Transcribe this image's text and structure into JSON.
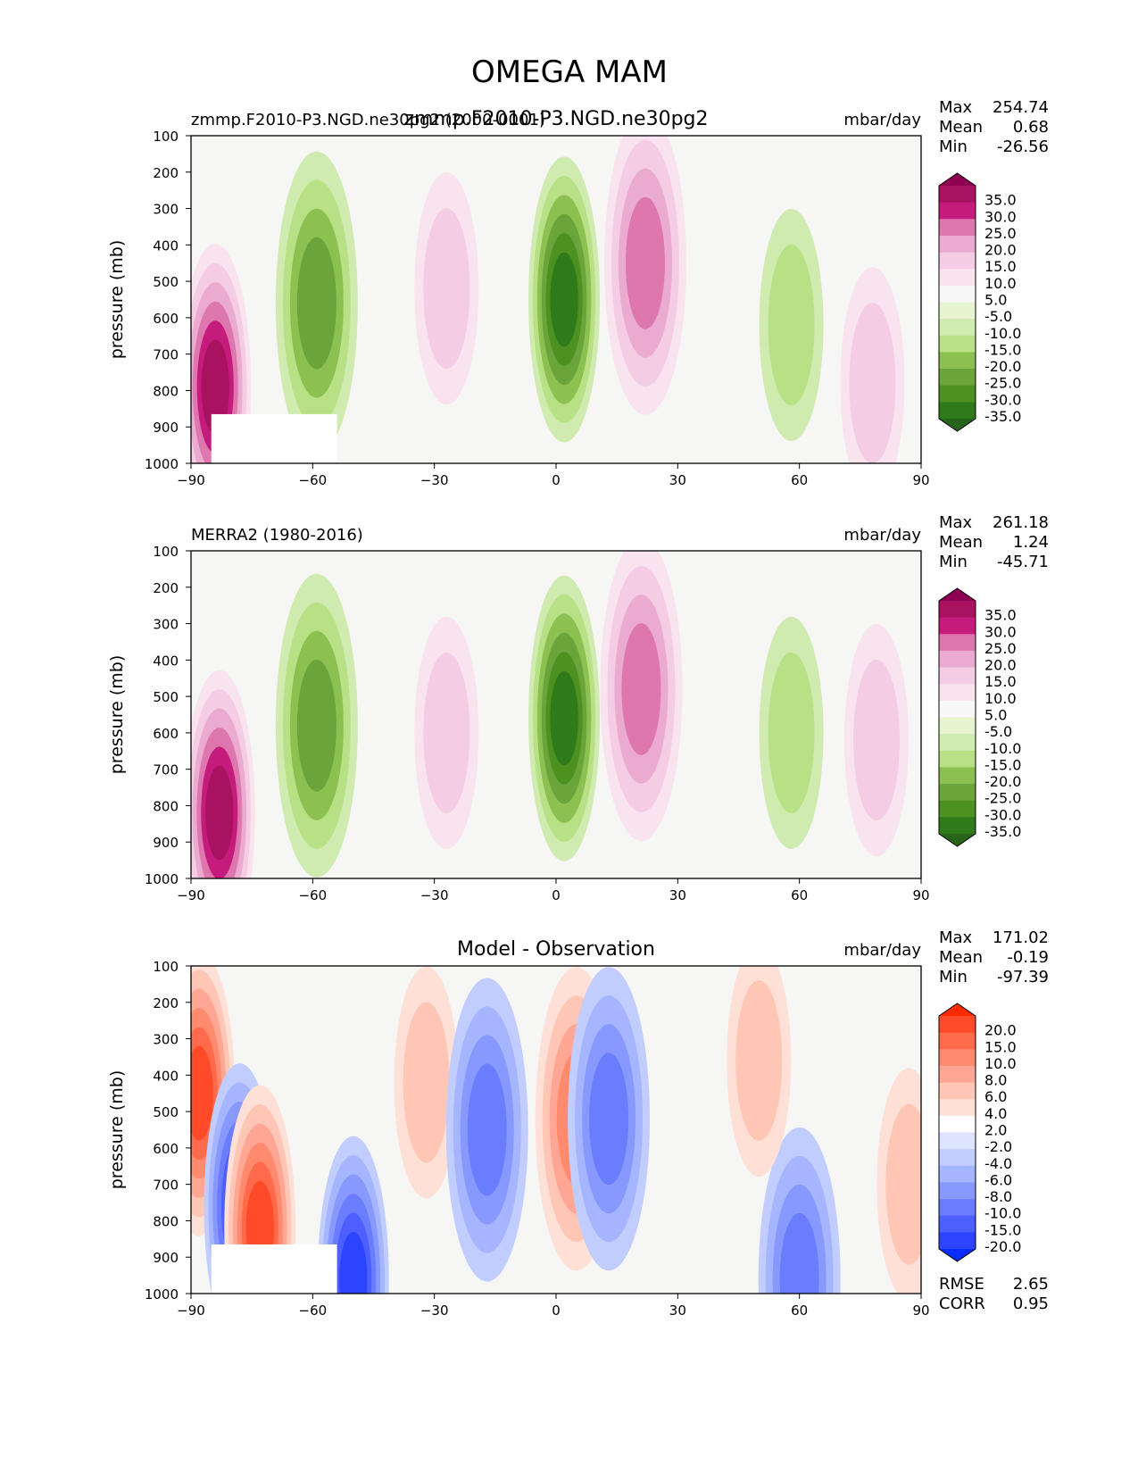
{
  "figure": {
    "title": "OMEGA MAM"
  },
  "chart_data": [
    {
      "type": "heatmap",
      "title": "zmmp.F2010-P3.NGD.ne30pg2",
      "left_label": "zmmp.F2010-P3.NGD.ne30pg2 (2000-0001)",
      "units": "mbar/day",
      "xlabel": "",
      "ylabel": "pressure (mb)",
      "x_ticks": [
        "−90",
        "−60",
        "−30",
        "0",
        "30",
        "60",
        "90"
      ],
      "y_ticks": [
        "100",
        "200",
        "300",
        "400",
        "500",
        "600",
        "700",
        "800",
        "900",
        "1000"
      ],
      "xlim": [
        -90,
        90
      ],
      "ylim": [
        1000,
        100
      ],
      "stats": [
        {
          "label": "Max",
          "value": "254.74"
        },
        {
          "label": "Mean",
          "value": "0.68"
        },
        {
          "label": "Min",
          "value": "-26.56"
        }
      ],
      "colorbar": {
        "levels": [
          "35.0",
          "30.0",
          "25.0",
          "20.0",
          "15.0",
          "10.0",
          "5.0",
          "-5.0",
          "-10.0",
          "-15.0",
          "-20.0",
          "-25.0",
          "-30.0",
          "-35.0"
        ],
        "colors": [
          "#8e0152",
          "#a8125f",
          "#c51b7d",
          "#de77ae",
          "#ebaad0",
          "#f4cde4",
          "#f9e3ef",
          "#f7f7f7",
          "#e6f5d0",
          "#d0ebb0",
          "#b8e186",
          "#8cc152",
          "#6aa43a",
          "#4d9221",
          "#2f7a1a",
          "#276419"
        ]
      },
      "features": [
        {
          "name": "polar-descent",
          "lon": -84,
          "p": 790,
          "sign": "positive",
          "strength": "strong"
        },
        {
          "name": "southern-storm-track-ascent",
          "lon": -59,
          "p": 560,
          "sign": "negative",
          "strength": "moderate"
        },
        {
          "name": "southern-subtropical-descent",
          "lon": -27,
          "p": 520,
          "sign": "positive",
          "strength": "weak"
        },
        {
          "name": "itcz-ascent",
          "lon": 2,
          "p": 550,
          "sign": "negative",
          "strength": "strong"
        },
        {
          "name": "northern-subtropical-descent",
          "lon": 22,
          "p": 450,
          "sign": "positive",
          "strength": "moderate"
        },
        {
          "name": "northern-midlatitude-ascent",
          "lon": 58,
          "p": 620,
          "sign": "negative",
          "strength": "weak"
        },
        {
          "name": "arctic-descent",
          "lon": 78,
          "p": 780,
          "sign": "positive",
          "strength": "weak"
        }
      ]
    },
    {
      "type": "heatmap",
      "title": "",
      "left_label": "MERRA2 (1980-2016)",
      "units": "mbar/day",
      "xlabel": "",
      "ylabel": "pressure (mb)",
      "x_ticks": [
        "−90",
        "−60",
        "−30",
        "0",
        "30",
        "60",
        "90"
      ],
      "y_ticks": [
        "100",
        "200",
        "300",
        "400",
        "500",
        "600",
        "700",
        "800",
        "900",
        "1000"
      ],
      "xlim": [
        -90,
        90
      ],
      "ylim": [
        1000,
        100
      ],
      "stats": [
        {
          "label": "Max",
          "value": "261.18"
        },
        {
          "label": "Mean",
          "value": "1.24"
        },
        {
          "label": "Min",
          "value": "-45.71"
        }
      ],
      "colorbar": {
        "levels": [
          "35.0",
          "30.0",
          "25.0",
          "20.0",
          "15.0",
          "10.0",
          "5.0",
          "-5.0",
          "-10.0",
          "-15.0",
          "-20.0",
          "-25.0",
          "-30.0",
          "-35.0"
        ],
        "colors": [
          "#8e0152",
          "#a8125f",
          "#c51b7d",
          "#de77ae",
          "#ebaad0",
          "#f4cde4",
          "#f9e3ef",
          "#f7f7f7",
          "#e6f5d0",
          "#d0ebb0",
          "#b8e186",
          "#8cc152",
          "#6aa43a",
          "#4d9221",
          "#2f7a1a",
          "#276419"
        ]
      },
      "features": [
        {
          "name": "polar-descent",
          "lon": -83,
          "p": 820,
          "sign": "positive",
          "strength": "strong"
        },
        {
          "name": "southern-storm-track-ascent",
          "lon": -59,
          "p": 580,
          "sign": "negative",
          "strength": "moderate"
        },
        {
          "name": "southern-subtropical-descent",
          "lon": -27,
          "p": 600,
          "sign": "positive",
          "strength": "weak"
        },
        {
          "name": "itcz-ascent",
          "lon": 2,
          "p": 560,
          "sign": "negative",
          "strength": "strong"
        },
        {
          "name": "northern-subtropical-descent",
          "lon": 21,
          "p": 480,
          "sign": "positive",
          "strength": "moderate"
        },
        {
          "name": "northern-midlatitude-ascent",
          "lon": 58,
          "p": 600,
          "sign": "negative",
          "strength": "weak"
        },
        {
          "name": "arctic-descent",
          "lon": 79,
          "p": 620,
          "sign": "positive",
          "strength": "weak"
        }
      ]
    },
    {
      "type": "heatmap",
      "title": "Model - Observation",
      "left_label": "",
      "units": "mbar/day",
      "xlabel": "",
      "ylabel": "pressure (mb)",
      "x_ticks": [
        "−90",
        "−60",
        "−30",
        "0",
        "30",
        "60",
        "90"
      ],
      "y_ticks": [
        "100",
        "200",
        "300",
        "400",
        "500",
        "600",
        "700",
        "800",
        "900",
        "1000"
      ],
      "xlim": [
        -90,
        90
      ],
      "ylim": [
        1000,
        100
      ],
      "stats": [
        {
          "label": "Max",
          "value": "171.02"
        },
        {
          "label": "Mean",
          "value": "-0.19"
        },
        {
          "label": "Min",
          "value": "-97.39"
        }
      ],
      "extra_stats": [
        {
          "label": "RMSE",
          "value": "2.65"
        },
        {
          "label": "CORR",
          "value": "0.95"
        }
      ],
      "colorbar": {
        "levels": [
          "20.0",
          "15.0",
          "10.0",
          "8.0",
          "6.0",
          "4.0",
          "2.0",
          "-2.0",
          "-4.0",
          "-6.0",
          "-8.0",
          "-10.0",
          "-15.0",
          "-20.0"
        ],
        "colors": [
          "#ff2a00",
          "#ff4a2a",
          "#ff6a4a",
          "#ff8a6e",
          "#ffa794",
          "#ffc6b6",
          "#ffe0d6",
          "#ffffff",
          "#dde4ff",
          "#c2cdff",
          "#a5b5ff",
          "#8799ff",
          "#6a7dff",
          "#4d60ff",
          "#2c44ff",
          "#0a2cff"
        ]
      },
      "features": [
        {
          "name": "polar-positive",
          "lon": -88,
          "p": 450,
          "sign": "positive",
          "strength": "strong"
        },
        {
          "name": "polar-negative",
          "lon": -78,
          "p": 760,
          "sign": "negative",
          "strength": "strong"
        },
        {
          "name": "polar-positive-lower",
          "lon": -73,
          "p": 820,
          "sign": "positive",
          "strength": "strong"
        },
        {
          "name": "southern-high-positive",
          "lon": -32,
          "p": 420,
          "sign": "positive",
          "strength": "weak"
        },
        {
          "name": "southern-negative",
          "lon": -17,
          "p": 550,
          "sign": "negative",
          "strength": "moderate"
        },
        {
          "name": "equatorial-positive",
          "lon": 5,
          "p": 520,
          "sign": "positive",
          "strength": "moderate"
        },
        {
          "name": "equatorial-negative",
          "lon": 13,
          "p": 520,
          "sign": "negative",
          "strength": "moderate"
        },
        {
          "name": "surface-negative-south",
          "lon": -50,
          "p": 960,
          "sign": "negative",
          "strength": "strong"
        },
        {
          "name": "surface-negative-north",
          "lon": 60,
          "p": 960,
          "sign": "negative",
          "strength": "moderate"
        },
        {
          "name": "northern-positive",
          "lon": 50,
          "p": 360,
          "sign": "positive",
          "strength": "weak"
        },
        {
          "name": "arctic-positive",
          "lon": 87,
          "p": 700,
          "sign": "positive",
          "strength": "weak"
        }
      ]
    }
  ]
}
